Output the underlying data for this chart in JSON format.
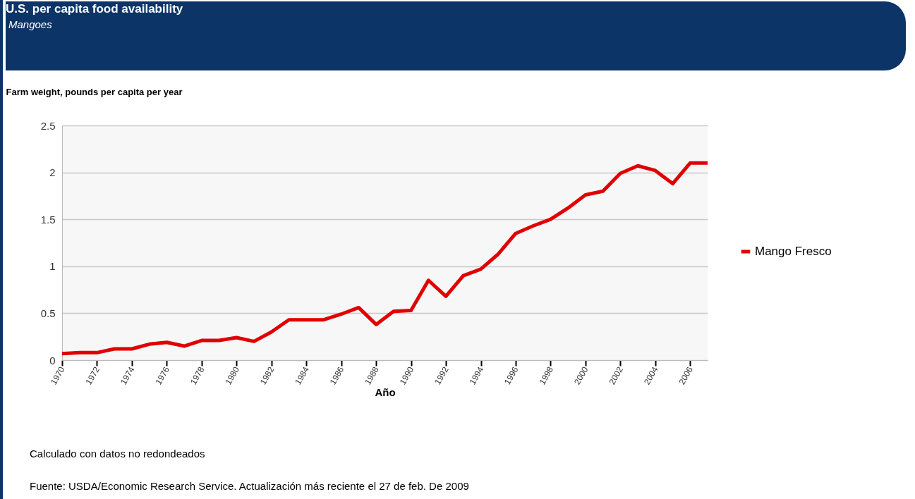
{
  "chart_data": {
    "type": "line",
    "title": "U.S. per capita food availability",
    "subtitle": "Mangoes",
    "ylabel": "Farm weight, pounds per capita per year",
    "xlabel": "Año",
    "x": [
      1970,
      1971,
      1972,
      1973,
      1974,
      1975,
      1976,
      1977,
      1978,
      1979,
      1980,
      1981,
      1982,
      1983,
      1984,
      1985,
      1986,
      1987,
      1988,
      1989,
      1990,
      1991,
      1992,
      1993,
      1994,
      1995,
      1996,
      1997,
      1998,
      1999,
      2000,
      2001,
      2002,
      2003,
      2004,
      2005,
      2006,
      2007
    ],
    "series": [
      {
        "name": "Mango Fresco",
        "color": "#e00000",
        "values": [
          0.07,
          0.08,
          0.08,
          0.12,
          0.12,
          0.17,
          0.19,
          0.15,
          0.21,
          0.21,
          0.24,
          0.2,
          0.3,
          0.43,
          0.43,
          0.43,
          0.49,
          0.56,
          0.38,
          0.52,
          0.53,
          0.85,
          0.68,
          0.9,
          0.97,
          1.13,
          1.35,
          1.43,
          1.5,
          1.62,
          1.76,
          1.8,
          1.99,
          2.07,
          2.02,
          1.88,
          2.1,
          2.1
        ]
      }
    ],
    "xlim": [
      1970,
      2007
    ],
    "xticks": [
      1970,
      1972,
      1974,
      1976,
      1978,
      1980,
      1982,
      1984,
      1986,
      1988,
      1990,
      1992,
      1994,
      1996,
      1998,
      2000,
      2002,
      2004,
      2006
    ],
    "ylim": [
      0,
      2.5
    ],
    "yticks": [
      0,
      0.5,
      1,
      1.5,
      2,
      2.5
    ],
    "grid": "y",
    "legend": "right",
    "annotations": [
      "Calculado con datos no redondeados",
      "Fuente: USDA/Economic Research Service. Actualización más reciente el 27 de feb. De 2009"
    ]
  }
}
